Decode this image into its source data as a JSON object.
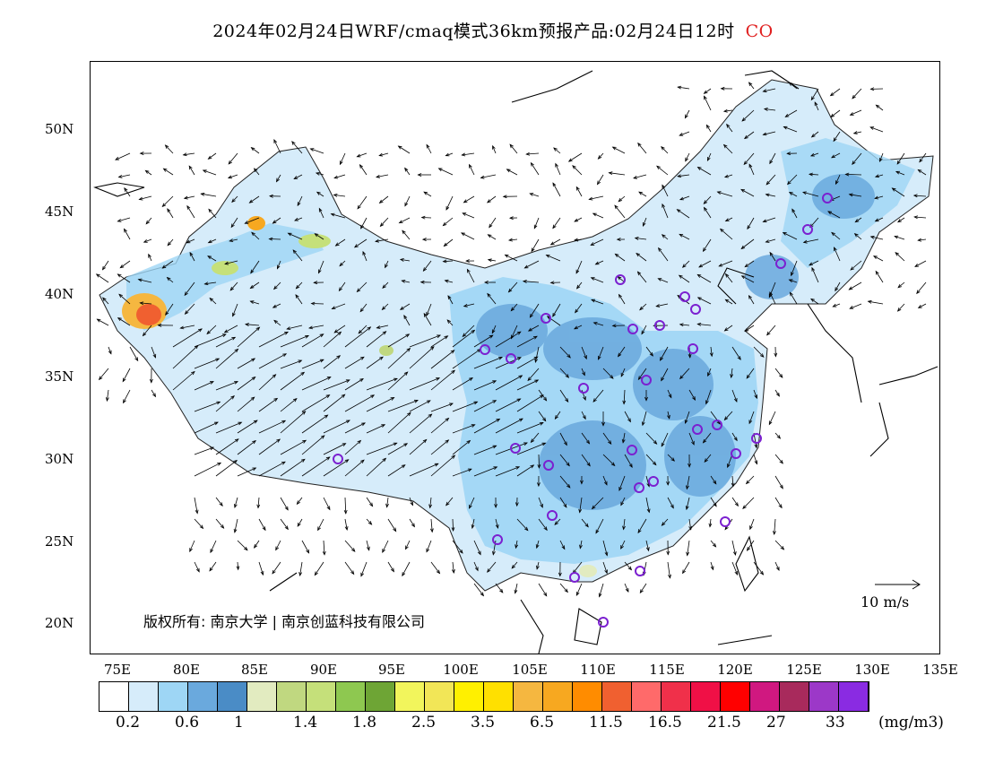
{
  "title": {
    "main": "2024年02月24日WRF/cmaq模式36km预报产品:02月24日12时",
    "species": "CO"
  },
  "lat_labels": [
    "50N",
    "45N",
    "40N",
    "35N",
    "30N",
    "25N",
    "20N"
  ],
  "lon_labels": [
    "75E",
    "80E",
    "85E",
    "90E",
    "95E",
    "100E",
    "105E",
    "110E",
    "115E",
    "120E",
    "125E",
    "130E",
    "135E"
  ],
  "copyright": "版权所有: 南京大学 | 南京创蓝科技有限公司",
  "wind_scale": "10 m/s",
  "colorbar": {
    "colors": [
      "#ffffff",
      "#d6ecfa",
      "#9ed6f5",
      "#6aa9dd",
      "#4a8cc6",
      "#e2ebc0",
      "#c0d880",
      "#c5e07a",
      "#8ec850",
      "#6ea535",
      "#f2f55c",
      "#f2e657",
      "#fff000",
      "#ffe000",
      "#f5b740",
      "#f7a820",
      "#ff8c00",
      "#f06030",
      "#ff6a6a",
      "#f0304a",
      "#f01046",
      "#ff0000",
      "#d01880",
      "#a82a5c",
      "#9c38c8",
      "#8a2be2"
    ],
    "labels": [
      "0.2",
      "0.6",
      "1",
      "1.4",
      "1.8",
      "2.5",
      "3.5",
      "6.5",
      "11.5",
      "16.5",
      "21.5",
      "27",
      "33"
    ],
    "unit": "(mg/m3)"
  },
  "colors": {
    "species": "#e02020",
    "site_marker": "#7b20d0",
    "concentration_blue": "#6aa9dd"
  }
}
